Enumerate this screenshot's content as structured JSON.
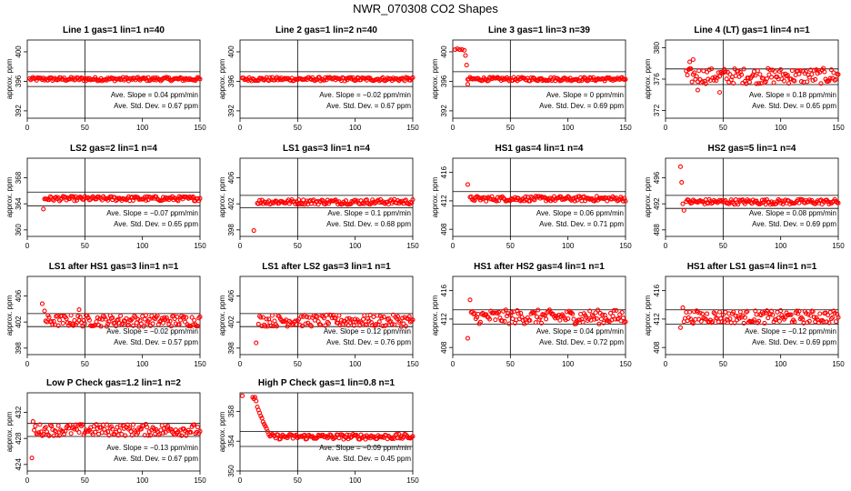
{
  "title": "NWR_070308  CO2 Shapes",
  "point_color": "#ff0000",
  "chart_data": [
    {
      "type": "scatter",
      "title": "Line 1 gas=1 lin=1 n=40",
      "ylabel": "approx. ppm",
      "xlim": [
        0,
        150
      ],
      "ylim": [
        391,
        401.6
      ],
      "yticks": [
        392,
        396,
        400
      ],
      "xticks": [
        0,
        50,
        100,
        150
      ],
      "vline": 50,
      "hlines": [
        397.3,
        395.3
      ],
      "start": 2,
      "base": 396.3,
      "noise": 0.25,
      "slope": 0.0,
      "spikes": [],
      "stats": [
        "Ave. Slope =  0.04  ppm/min",
        "Ave. Std. Dev. =  0.67  ppm"
      ]
    },
    {
      "type": "scatter",
      "title": "Line 2 gas=1 lin=2 n=40",
      "ylabel": "approx. ppm",
      "xlim": [
        0,
        150
      ],
      "ylim": [
        391,
        401.6
      ],
      "yticks": [
        392,
        396,
        400
      ],
      "xticks": [
        0,
        50,
        100,
        150
      ],
      "vline": 50,
      "hlines": [
        397.3,
        395.3
      ],
      "start": 2,
      "base": 396.3,
      "noise": 0.25,
      "slope": 0.0,
      "spikes": [],
      "stats": [
        "Ave. Slope = −0.02  ppm/min",
        "Ave. Std. Dev. =  0.67  ppm"
      ]
    },
    {
      "type": "scatter",
      "title": "Line 3 gas=1 lin=3 n=39",
      "ylabel": "approx. ppm",
      "xlim": [
        0,
        150
      ],
      "ylim": [
        391,
        401.6
      ],
      "yticks": [
        392,
        396,
        400
      ],
      "xticks": [
        0,
        50,
        100,
        150
      ],
      "vline": 50,
      "hlines": [
        397.3,
        395.3
      ],
      "start": 13,
      "base": 396.3,
      "noise": 0.25,
      "slope": 0.0,
      "spikes": [
        [
          2,
          400.3
        ],
        [
          4,
          400.4
        ],
        [
          6,
          400.3
        ],
        [
          8,
          400.3
        ],
        [
          10,
          400.2
        ],
        [
          11,
          399.5
        ],
        [
          12,
          398.2
        ],
        [
          13,
          395.6
        ]
      ],
      "stats": [
        "Ave. Slope =  0  ppm/min",
        "Ave. Std. Dev. =  0.69  ppm"
      ]
    },
    {
      "type": "scatter",
      "title": "Line 4 (LT) gas=1 lin=4 n=1",
      "ylabel": "approx. ppm",
      "xlim": [
        0,
        150
      ],
      "ylim": [
        371,
        381
      ],
      "yticks": [
        372,
        376,
        380
      ],
      "xticks": [
        0,
        50,
        100,
        150
      ],
      "vline": 50,
      "hlines": [
        377.3,
        375.3
      ],
      "start": 18,
      "base": 376.4,
      "noise": 1.0,
      "slope": 0.0,
      "spikes": [
        [
          21,
          378.2
        ],
        [
          24,
          378.5
        ],
        [
          28,
          374.6
        ],
        [
          47,
          374.3
        ]
      ],
      "stats": [
        "Ave. Slope =  0.18  ppm/min",
        "Ave. Std. Dev. =  0.65  ppm"
      ]
    },
    {
      "type": "scatter",
      "title": "LS2 gas=2 lin=1 n=4",
      "ylabel": "approx. ppm",
      "xlim": [
        0,
        150
      ],
      "ylim": [
        359,
        371
      ],
      "yticks": [
        360,
        364,
        368
      ],
      "xticks": [
        0,
        50,
        100,
        150
      ],
      "vline": 50,
      "hlines": [
        365.8,
        363.7
      ],
      "start": 15,
      "base": 364.8,
      "noise": 0.35,
      "slope": 0.0,
      "spikes": [
        [
          14,
          363.2
        ]
      ],
      "stats": [
        "Ave. Slope = −0.07  ppm/min",
        "Ave. Std. Dev. =  0.65  ppm"
      ]
    },
    {
      "type": "scatter",
      "title": "LS1 gas=3 lin=1 n=4",
      "ylabel": "approx. ppm",
      "xlim": [
        0,
        150
      ],
      "ylim": [
        397,
        409
      ],
      "yticks": [
        398,
        402,
        406
      ],
      "xticks": [
        0,
        50,
        100,
        150
      ],
      "vline": 50,
      "hlines": [
        403.3,
        401.4
      ],
      "start": 15,
      "base": 402.3,
      "noise": 0.4,
      "slope": 0.0,
      "spikes": [
        [
          12,
          397.9
        ]
      ],
      "stats": [
        "Ave. Slope =  0.1  ppm/min",
        "Ave. Std. Dev. =  0.68  ppm"
      ]
    },
    {
      "type": "scatter",
      "title": "HS1 gas=4 lin=1 n=4",
      "ylabel": "approx. ppm",
      "xlim": [
        0,
        150
      ],
      "ylim": [
        407,
        418
      ],
      "yticks": [
        408,
        412,
        416
      ],
      "xticks": [
        0,
        50,
        100,
        150
      ],
      "vline": 50,
      "hlines": [
        413.3,
        411.3
      ],
      "start": 15,
      "base": 412.3,
      "noise": 0.35,
      "slope": 0.0,
      "spikes": [
        [
          13,
          414.3
        ]
      ],
      "stats": [
        "Ave. Slope =  0.06  ppm/min",
        "Ave. Std. Dev. =  0.71  ppm"
      ]
    },
    {
      "type": "scatter",
      "title": "HS2 gas=5 lin=1 n=4",
      "ylabel": "approx. ppm",
      "xlim": [
        0,
        150
      ],
      "ylim": [
        487,
        499
      ],
      "yticks": [
        488,
        492,
        496
      ],
      "xticks": [
        0,
        50,
        100,
        150
      ],
      "vline": 50,
      "hlines": [
        493.3,
        491.3
      ],
      "start": 18,
      "base": 492.3,
      "noise": 0.4,
      "slope": 0.0,
      "spikes": [
        [
          13,
          497.7
        ],
        [
          14,
          495.3
        ],
        [
          15,
          492.0
        ],
        [
          16,
          491.0
        ]
      ],
      "stats": [
        "Ave. Slope =  0.08  ppm/min",
        "Ave. Std. Dev. =  0.69  ppm"
      ]
    },
    {
      "type": "scatter",
      "title": "LS1 after HS1 gas=3 lin=1 n=1",
      "ylabel": "approx. ppm",
      "xlim": [
        0,
        150
      ],
      "ylim": [
        397,
        409
      ],
      "yticks": [
        398,
        402,
        406
      ],
      "xticks": [
        0,
        50,
        100,
        150
      ],
      "vline": 50,
      "hlines": [
        403.3,
        401.3
      ],
      "start": 16,
      "base": 402.2,
      "noise": 0.9,
      "slope": 0.0,
      "spikes": [
        [
          13,
          404.8
        ],
        [
          15,
          403.7
        ],
        [
          45,
          403.9
        ]
      ],
      "stats": [
        "Ave. Slope = −0.02  ppm/min",
        "Ave. Std. Dev. =  0.57  ppm"
      ]
    },
    {
      "type": "scatter",
      "title": "LS1 after LS2 gas=3 lin=1 n=1",
      "ylabel": "approx. ppm",
      "xlim": [
        0,
        150
      ],
      "ylim": [
        397,
        409
      ],
      "yticks": [
        398,
        402,
        406
      ],
      "xticks": [
        0,
        50,
        100,
        150
      ],
      "vline": 50,
      "hlines": [
        403.3,
        401.3
      ],
      "start": 16,
      "base": 402.2,
      "noise": 0.9,
      "slope": 0.0,
      "spikes": [
        [
          14,
          398.8
        ]
      ],
      "stats": [
        "Ave. Slope =  0.12  ppm/min",
        "Ave. Std. Dev. =  0.76  ppm"
      ]
    },
    {
      "type": "scatter",
      "title": "HS1 after HS2 gas=4 lin=1 n=1",
      "ylabel": "approx. ppm",
      "xlim": [
        0,
        150
      ],
      "ylim": [
        407,
        418
      ],
      "yticks": [
        408,
        412,
        416
      ],
      "xticks": [
        0,
        50,
        100,
        150
      ],
      "vline": 50,
      "hlines": [
        413.3,
        411.3
      ],
      "start": 16,
      "base": 412.3,
      "noise": 1.0,
      "slope": 0.0,
      "spikes": [
        [
          13,
          409.3
        ],
        [
          15,
          414.7
        ]
      ],
      "stats": [
        "Ave. Slope =  0.04  ppm/min",
        "Ave. Std. Dev. =  0.72  ppm"
      ]
    },
    {
      "type": "scatter",
      "title": "HS1 after LS1 gas=4 lin=1 n=1",
      "ylabel": "approx. ppm",
      "xlim": [
        0,
        150
      ],
      "ylim": [
        407,
        418
      ],
      "yticks": [
        408,
        412,
        416
      ],
      "xticks": [
        0,
        50,
        100,
        150
      ],
      "vline": 50,
      "hlines": [
        413.3,
        411.3
      ],
      "start": 16,
      "base": 412.3,
      "noise": 0.9,
      "slope": 0.0,
      "spikes": [
        [
          13,
          410.8
        ],
        [
          15,
          413.6
        ]
      ],
      "stats": [
        "Ave. Slope = −0.12  ppm/min",
        "Ave. Std. Dev. =  0.69  ppm"
      ]
    },
    {
      "type": "scatter",
      "title": "Low P Check gas=1.2 lin=1 n=2",
      "ylabel": "approx. ppm",
      "xlim": [
        0,
        150
      ],
      "ylim": [
        423,
        435
      ],
      "yticks": [
        424,
        428,
        432
      ],
      "xticks": [
        0,
        50,
        100,
        150
      ],
      "vline": 50,
      "hlines": [
        430.3,
        428.3
      ],
      "start": 6,
      "base": 429.3,
      "noise": 0.9,
      "slope": 0.0,
      "spikes": [
        [
          4,
          425.0
        ],
        [
          5,
          430.6
        ]
      ],
      "stats": [
        "Ave. Slope = −0.13  ppm/min",
        "Ave. Std. Dev. =  0.67  ppm"
      ]
    },
    {
      "type": "scatter",
      "title": "High P Check gas=1 lin=0.8 n=1",
      "ylabel": "approx. ppm",
      "xlim": [
        0,
        150
      ],
      "ylim": [
        350,
        360.5
      ],
      "yticks": [
        350,
        354,
        358
      ],
      "xticks": [
        0,
        50,
        100,
        150
      ],
      "vline": 50,
      "hlines": [
        355.3,
        353.3
      ],
      "start": 25,
      "base": 354.6,
      "noise": 0.35,
      "slope": 0.0,
      "spikes": [
        [
          2,
          360.1
        ],
        [
          11,
          359.9
        ],
        [
          12,
          359.7
        ],
        [
          13,
          359.9
        ],
        [
          14,
          359.4
        ],
        [
          15,
          358.6
        ],
        [
          16,
          358.2
        ],
        [
          17,
          357.8
        ],
        [
          18,
          357.4
        ],
        [
          19,
          357.1
        ],
        [
          20,
          356.6
        ],
        [
          21,
          356.3
        ],
        [
          22,
          356.0
        ],
        [
          23,
          355.7
        ],
        [
          24,
          355.3
        ]
      ],
      "stats": [
        "Ave. Slope = −0.09  ppm/min",
        "Ave. Std. Dev. =  0.45  ppm"
      ]
    }
  ]
}
